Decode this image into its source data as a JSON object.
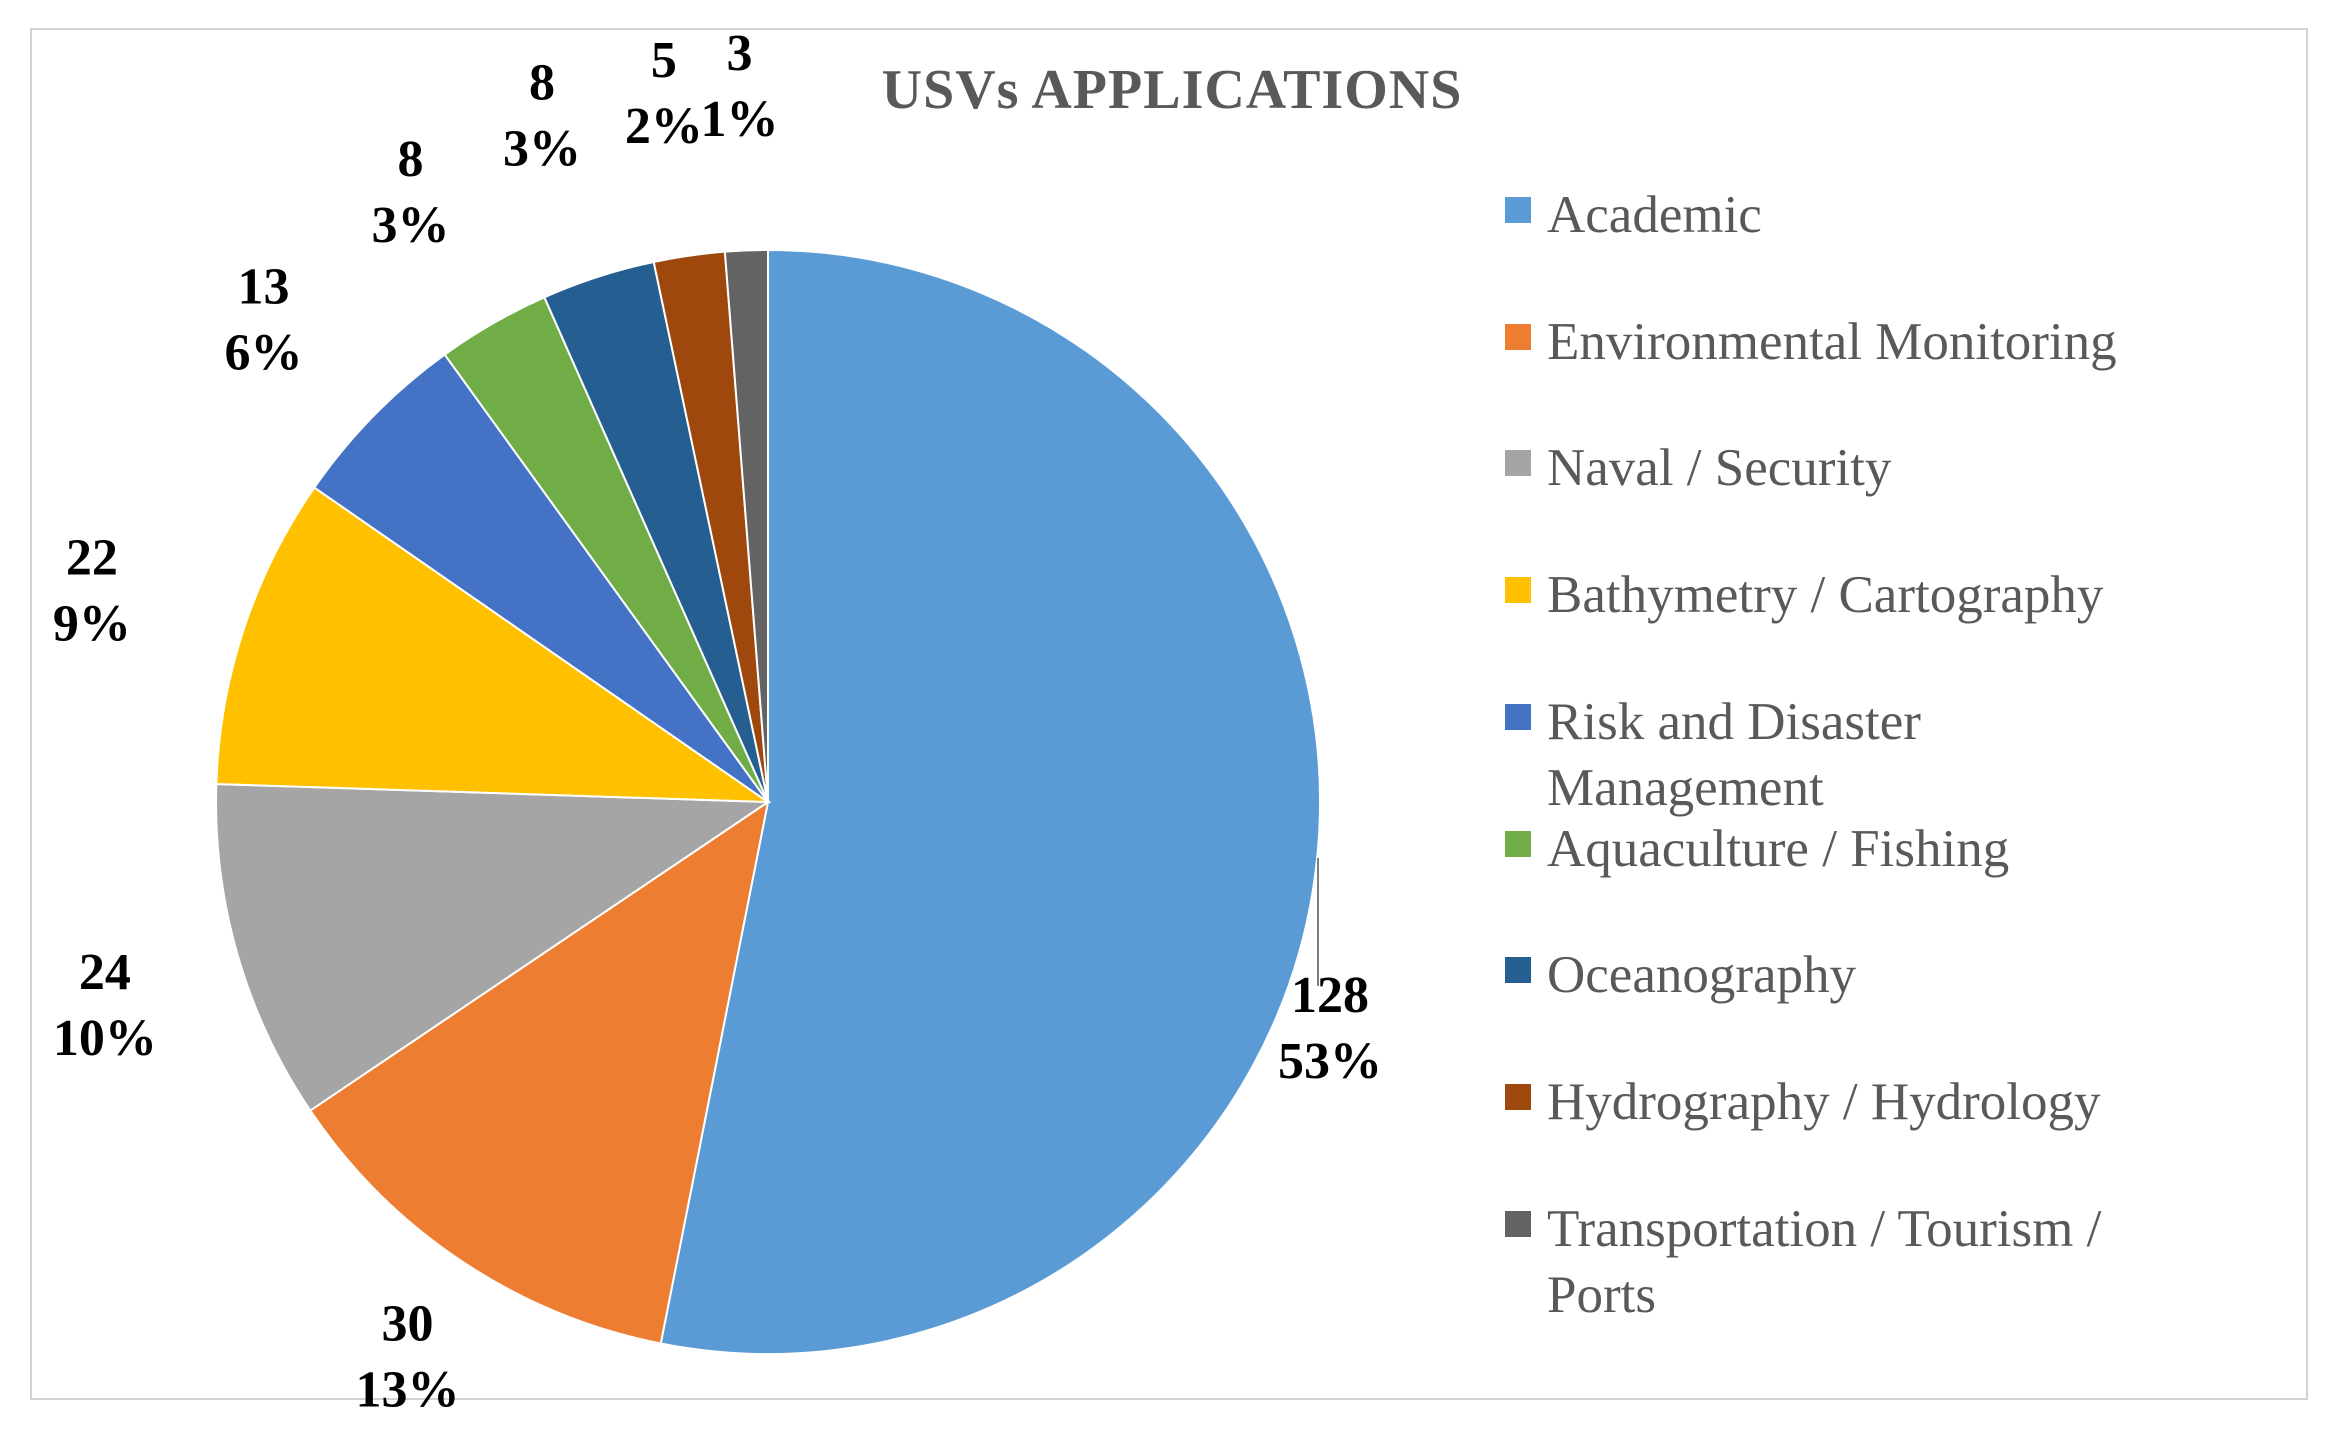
{
  "chart_data": {
    "type": "pie",
    "title": "USVs APPLICATIONS",
    "legend_position": "right",
    "slices": [
      {
        "name": "Academic",
        "value": 128,
        "percent_label": "53%",
        "color": "#5B9BD5"
      },
      {
        "name": "Environmental Monitoring",
        "value": 30,
        "percent_label": "13%",
        "color": "#ED7D31"
      },
      {
        "name": "Naval / Security",
        "value": 24,
        "percent_label": "10%",
        "color": "#A5A5A5"
      },
      {
        "name": "Bathymetry / Cartography",
        "value": 22,
        "percent_label": "9%",
        "color": "#FFC000"
      },
      {
        "name": "Risk and Disaster Management",
        "value": 13,
        "percent_label": "6%",
        "color": "#4472C4"
      },
      {
        "name": "Aquaculture / Fishing",
        "value": 8,
        "percent_label": "3%",
        "color": "#70AD47"
      },
      {
        "name": "Oceanography",
        "value": 8,
        "percent_label": "3%",
        "color": "#255E91"
      },
      {
        "name": "Hydrography / Hydrology",
        "value": 5,
        "percent_label": "2%",
        "color": "#9E480E"
      },
      {
        "name": "Transportation / Tourism / Ports",
        "value": 3,
        "percent_label": "1%",
        "color": "#636363"
      }
    ]
  }
}
